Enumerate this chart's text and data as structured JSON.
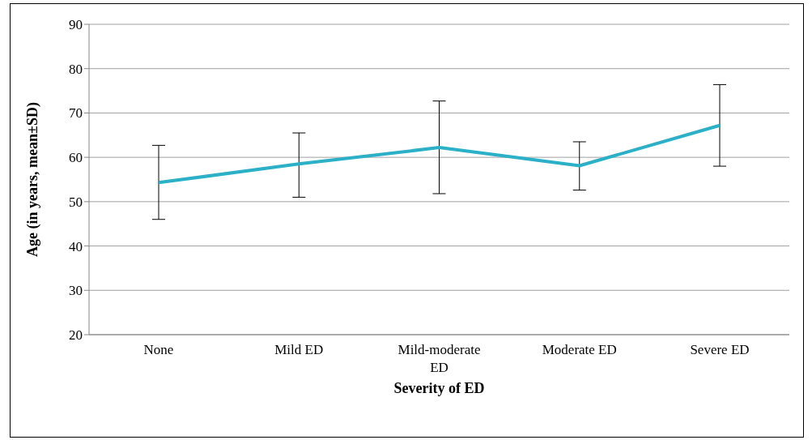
{
  "chart_data": {
    "type": "line",
    "xlabel": "Severity of ED",
    "ylabel": "Age (in years, mean±SD)",
    "categories": [
      "None",
      "Mild ED",
      "Mild-moderate ED",
      "Moderate ED",
      "Severe ED"
    ],
    "series": [
      {
        "color": "#2bb0c8",
        "values": [
          54.3,
          58.5,
          62.2,
          58.1,
          67.2
        ],
        "errors": [
          [
            46.0,
            62.7
          ],
          [
            51.0,
            65.5
          ],
          [
            51.8,
            72.7
          ],
          [
            52.6,
            63.5
          ],
          [
            58.0,
            76.4
          ]
        ]
      }
    ],
    "ylim": [
      20,
      90
    ],
    "yticks": [
      20,
      30,
      40,
      50,
      60,
      70,
      80,
      90
    ],
    "grid": "y",
    "legend": false,
    "marker": "none",
    "line_style": "solid"
  }
}
